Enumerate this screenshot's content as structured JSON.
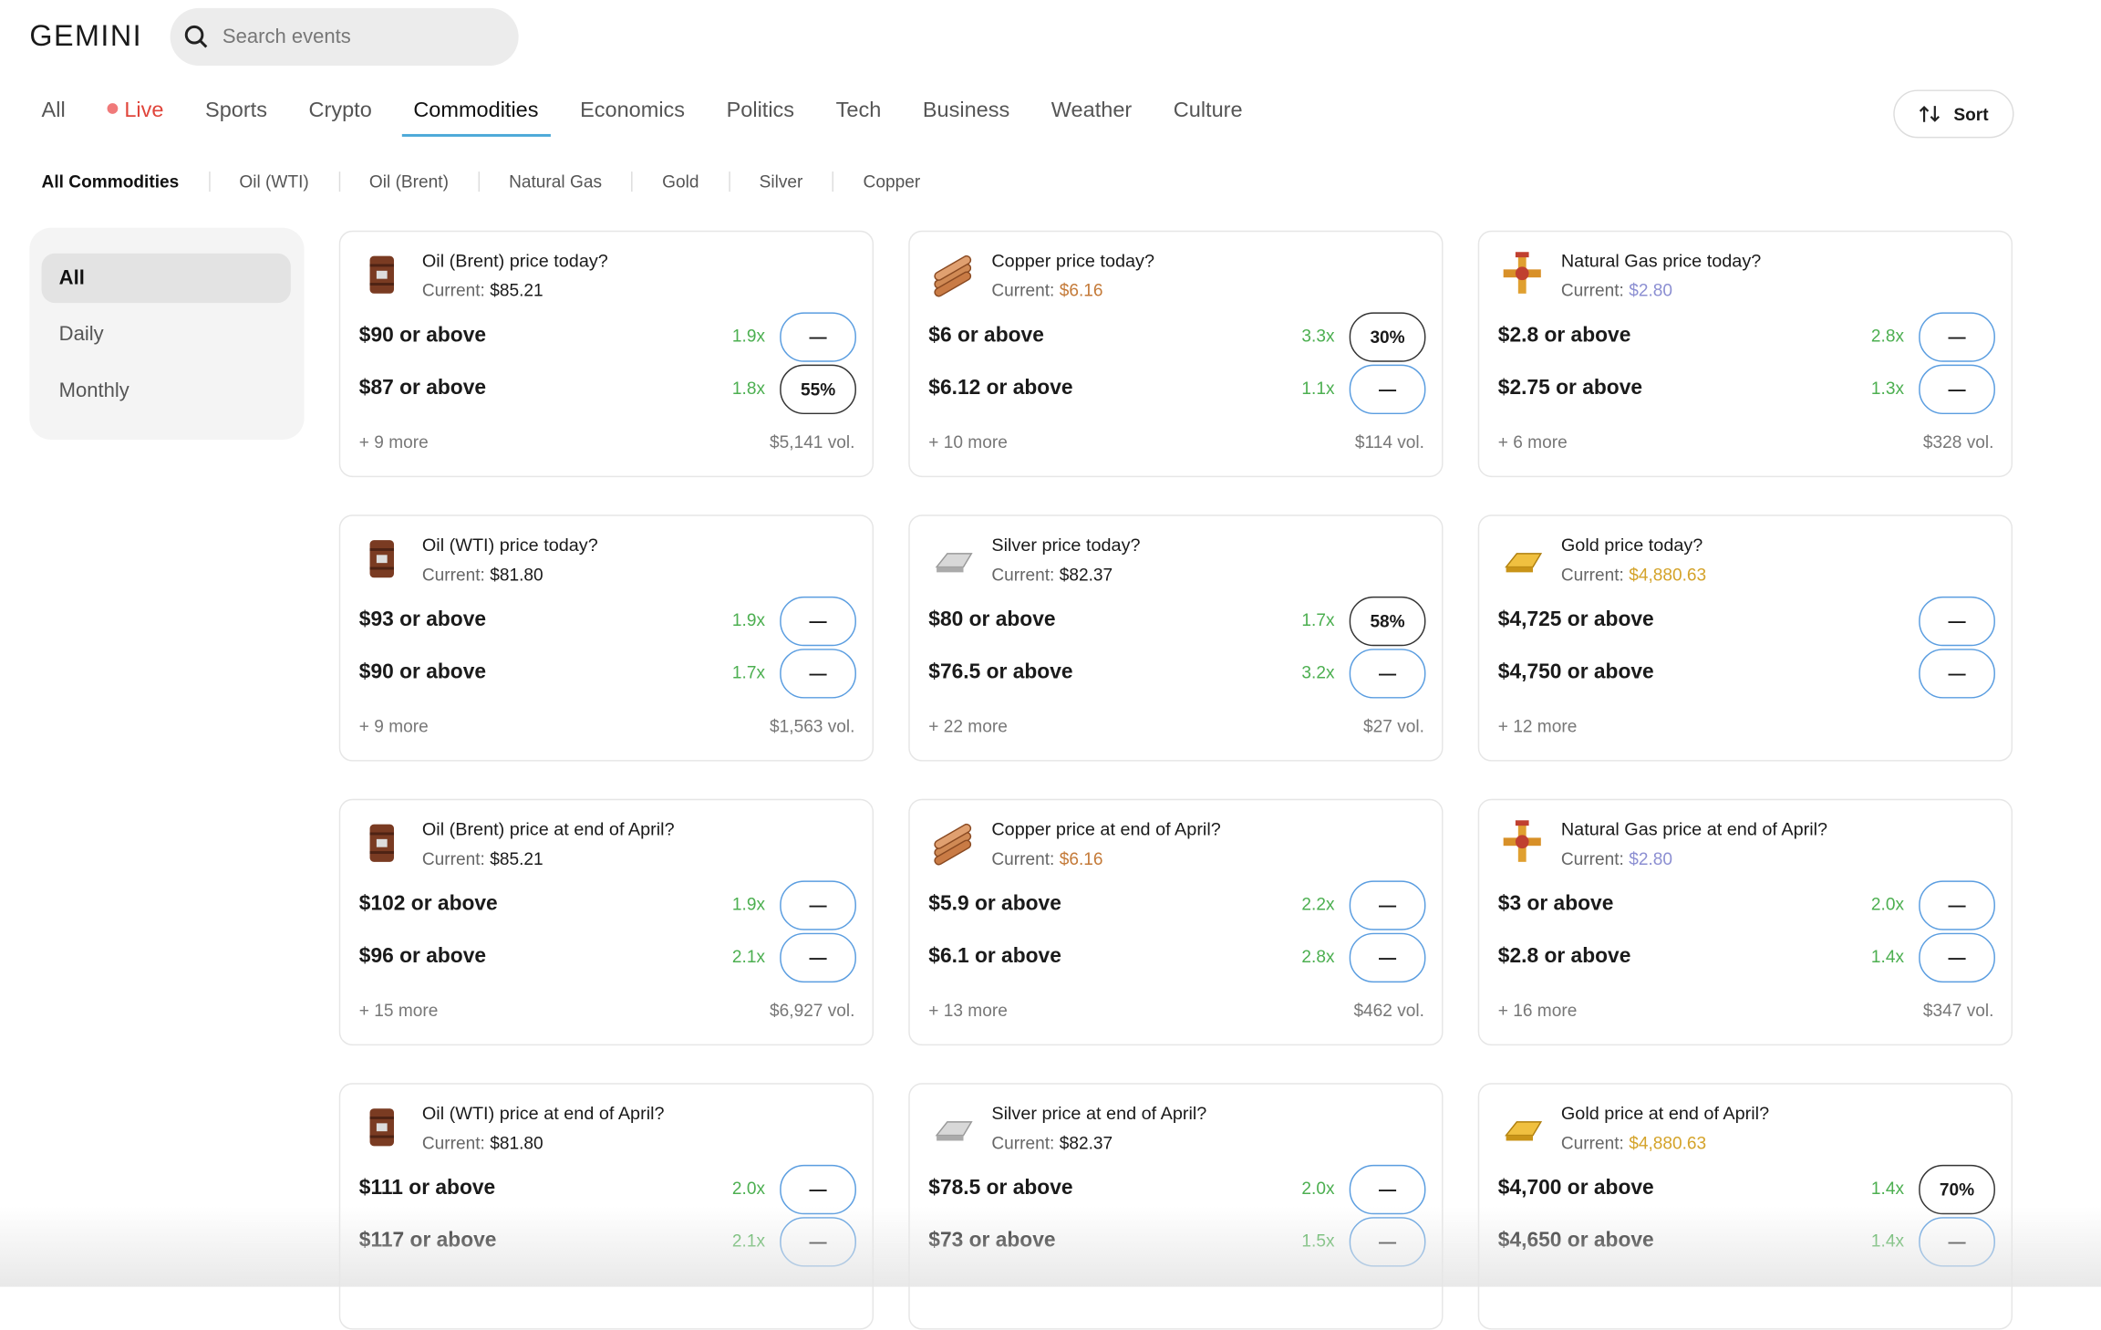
{
  "header": {
    "logo": "GEMINI",
    "search_placeholder": "Search events",
    "sort": "Sort"
  },
  "tabs": [
    "All",
    "Live",
    "Sports",
    "Crypto",
    "Commodities",
    "Economics",
    "Politics",
    "Tech",
    "Business",
    "Weather",
    "Culture"
  ],
  "active_tab": 4,
  "live_tab": 1,
  "subtabs": [
    "All Commodities",
    "Oil (WTI)",
    "Oil (Brent)",
    "Natural Gas",
    "Gold",
    "Silver",
    "Copper"
  ],
  "sidebar": [
    "All",
    "Daily",
    "Monthly"
  ],
  "cards": [
    {
      "title": "Oil (Brent) price today?",
      "current_label": "Current:",
      "current": "$85.21",
      "rows": [
        {
          "label": "$90 or above",
          "multiplier": "1.9x",
          "button": "—"
        },
        {
          "label": "$87 or above",
          "multiplier": "1.8x",
          "button": "55%"
        }
      ],
      "more": "+ 9 more",
      "volume": "$5,141 vol."
    },
    {
      "title": "Copper price today?",
      "current_label": "Current:",
      "current": "$6.16",
      "current_color": "#c47a38",
      "rows": [
        {
          "label": "$6 or above",
          "multiplier": "3.3x",
          "button": "30%"
        },
        {
          "label": "$6.12 or above",
          "multiplier": "1.1x",
          "button": "—"
        }
      ],
      "more": "+ 10 more",
      "volume": "$114 vol."
    },
    {
      "title": "Natural Gas price today?",
      "current_label": "Current:",
      "current": "$2.80",
      "current_color": "#8c8fd2",
      "rows": [
        {
          "label": "$2.8 or above",
          "multiplier": "2.8x",
          "button": "—"
        },
        {
          "label": "$2.75 or above",
          "multiplier": "1.3x",
          "button": "—"
        }
      ],
      "more": "+ 6 more",
      "volume": "$328 vol."
    },
    {
      "title": "Oil (WTI) price today?",
      "current_label": "Current:",
      "current": "$81.80",
      "rows": [
        {
          "label": "$93 or above",
          "multiplier": "1.9x",
          "button": "—"
        },
        {
          "label": "$90 or above",
          "multiplier": "1.7x",
          "button": "—"
        }
      ],
      "more": "+ 9 more",
      "volume": "$1,563 vol."
    },
    {
      "title": "Silver price today?",
      "current_label": "Current:",
      "current": "$82.37",
      "rows": [
        {
          "label": "$80 or above",
          "multiplier": "1.7x",
          "button": "58%"
        },
        {
          "label": "$76.5 or above",
          "multiplier": "3.2x",
          "button": "—"
        }
      ],
      "more": "+ 22 more",
      "volume": "$27 vol."
    },
    {
      "title": "Gold price today?",
      "current_label": "Current:",
      "current": "$4,880.63",
      "current_color": "#d4a32a",
      "rows": [
        {
          "label": "$4,725 or above",
          "button": "—"
        },
        {
          "label": "$4,750 or above",
          "button": "—"
        }
      ],
      "more": "+ 12 more"
    },
    {
      "title": "Oil (Brent) price at end of April?",
      "current_label": "Current:",
      "current": "$85.21",
      "rows": [
        {
          "label": "$102 or above",
          "multiplier": "1.9x",
          "button": "—"
        },
        {
          "label": "$96 or above",
          "multiplier": "2.1x",
          "button": "—"
        }
      ],
      "more": "+ 15 more",
      "volume": "$6,927 vol."
    },
    {
      "title": "Copper price at end of April?",
      "current_label": "Current:",
      "current": "$6.16",
      "current_color": "#c47a38",
      "rows": [
        {
          "label": "$5.9 or above",
          "multiplier": "2.2x",
          "button": "—"
        },
        {
          "label": "$6.1 or above",
          "multiplier": "2.8x",
          "button": "—"
        }
      ],
      "more": "+ 13 more",
      "volume": "$462 vol."
    },
    {
      "title": "Natural Gas price at end of April?",
      "current_label": "Current:",
      "current": "$2.80",
      "current_color": "#8c8fd2",
      "rows": [
        {
          "label": "$3 or above",
          "multiplier": "2.0x",
          "button": "—"
        },
        {
          "label": "$2.8 or above",
          "multiplier": "1.4x",
          "button": "—"
        }
      ],
      "more": "+ 16 more",
      "volume": "$347 vol."
    },
    {
      "title": "Oil (WTI) price at end of April?",
      "current_label": "Current:",
      "current": "$81.80",
      "rows": [
        {
          "label": "$111 or above",
          "multiplier": "2.0x",
          "button": "—"
        },
        {
          "label": "$117 or above",
          "multiplier": "2.1x",
          "button": "—"
        }
      ]
    },
    {
      "title": "Silver price at end of April?",
      "current_label": "Current:",
      "current": "$82.37",
      "rows": [
        {
          "label": "$78.5 or above",
          "multiplier": "2.0x",
          "button": "—"
        },
        {
          "label": "$73 or above",
          "multiplier": "1.5x",
          "button": "—"
        }
      ]
    },
    {
      "title": "Gold price at end of April?",
      "current_label": "Current:",
      "current": "$4,880.63",
      "current_color": "#d4a32a",
      "rows": [
        {
          "label": "$4,700 or above",
          "multiplier": "1.4x",
          "button": "70%"
        },
        {
          "label": "$4,650 or above",
          "multiplier": "1.4x",
          "button": "—"
        }
      ]
    }
  ]
}
